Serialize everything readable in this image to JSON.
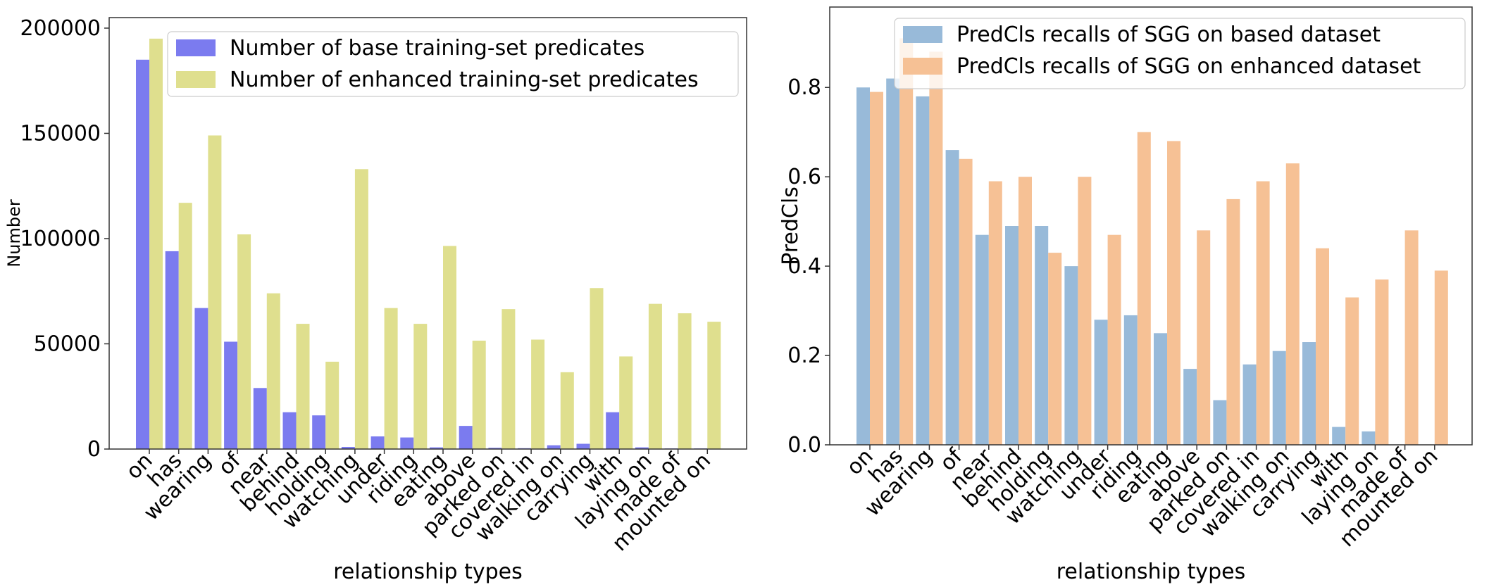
{
  "chart_data": [
    {
      "type": "bar",
      "xlabel": "relationship types",
      "ylabel": "Number",
      "ylim": [
        0,
        205000
      ],
      "yticks": [
        0,
        50000,
        100000,
        150000,
        200000
      ],
      "legend_position": "top-right",
      "categories": [
        "on",
        "has",
        "wearing",
        "of",
        "near",
        "behind",
        "holding",
        "watching",
        "under",
        "riding",
        "eating",
        "above",
        "parked on",
        "covered in",
        "walking on",
        "carrying",
        "with",
        "laying on",
        "made of",
        "mounted on"
      ],
      "series": [
        {
          "name": "Number of base training-set predicates",
          "color": "#7b7bef",
          "values": [
            185000,
            94000,
            67000,
            51000,
            29000,
            17500,
            16000,
            1000,
            6000,
            5500,
            800,
            11000,
            600,
            400,
            1800,
            2500,
            17500,
            800,
            300,
            300
          ]
        },
        {
          "name": "Number of enhanced training-set predicates",
          "color": "#dfdf8e",
          "values": [
            195000,
            117000,
            149000,
            102000,
            74000,
            59500,
            41500,
            133000,
            67000,
            59500,
            96500,
            51500,
            66500,
            52000,
            36500,
            76500,
            44000,
            69000,
            64500,
            60500
          ]
        }
      ]
    },
    {
      "type": "bar",
      "xlabel": "relationship types",
      "ylabel": "PredCls",
      "ylim": [
        0,
        0.98
      ],
      "yticks": [
        "0.0",
        "0.2",
        "0.4",
        "0.6",
        "0.8"
      ],
      "legend_position": "top-right",
      "categories": [
        "on",
        "has",
        "wearing",
        "of",
        "near",
        "behind",
        "holding",
        "watching",
        "under",
        "riding",
        "eating",
        "above",
        "parked on",
        "covered in",
        "walking on",
        "carrying",
        "with",
        "laying on",
        "made of",
        "mounted on"
      ],
      "series": [
        {
          "name": "PredCls recalls of SGG on based dataset",
          "color": "#98bad9",
          "values": [
            0.8,
            0.82,
            0.78,
            0.66,
            0.47,
            0.49,
            0.49,
            0.4,
            0.28,
            0.29,
            0.25,
            0.17,
            0.1,
            0.18,
            0.21,
            0.23,
            0.04,
            0.03,
            0.0,
            0.0
          ]
        },
        {
          "name": "PredCls recalls of SGG on enhanced dataset",
          "color": "#f6c195",
          "values": [
            0.79,
            0.91,
            0.88,
            0.64,
            0.59,
            0.6,
            0.43,
            0.6,
            0.47,
            0.7,
            0.68,
            0.48,
            0.55,
            0.59,
            0.63,
            0.44,
            0.33,
            0.37,
            0.48,
            0.39
          ]
        }
      ]
    }
  ]
}
